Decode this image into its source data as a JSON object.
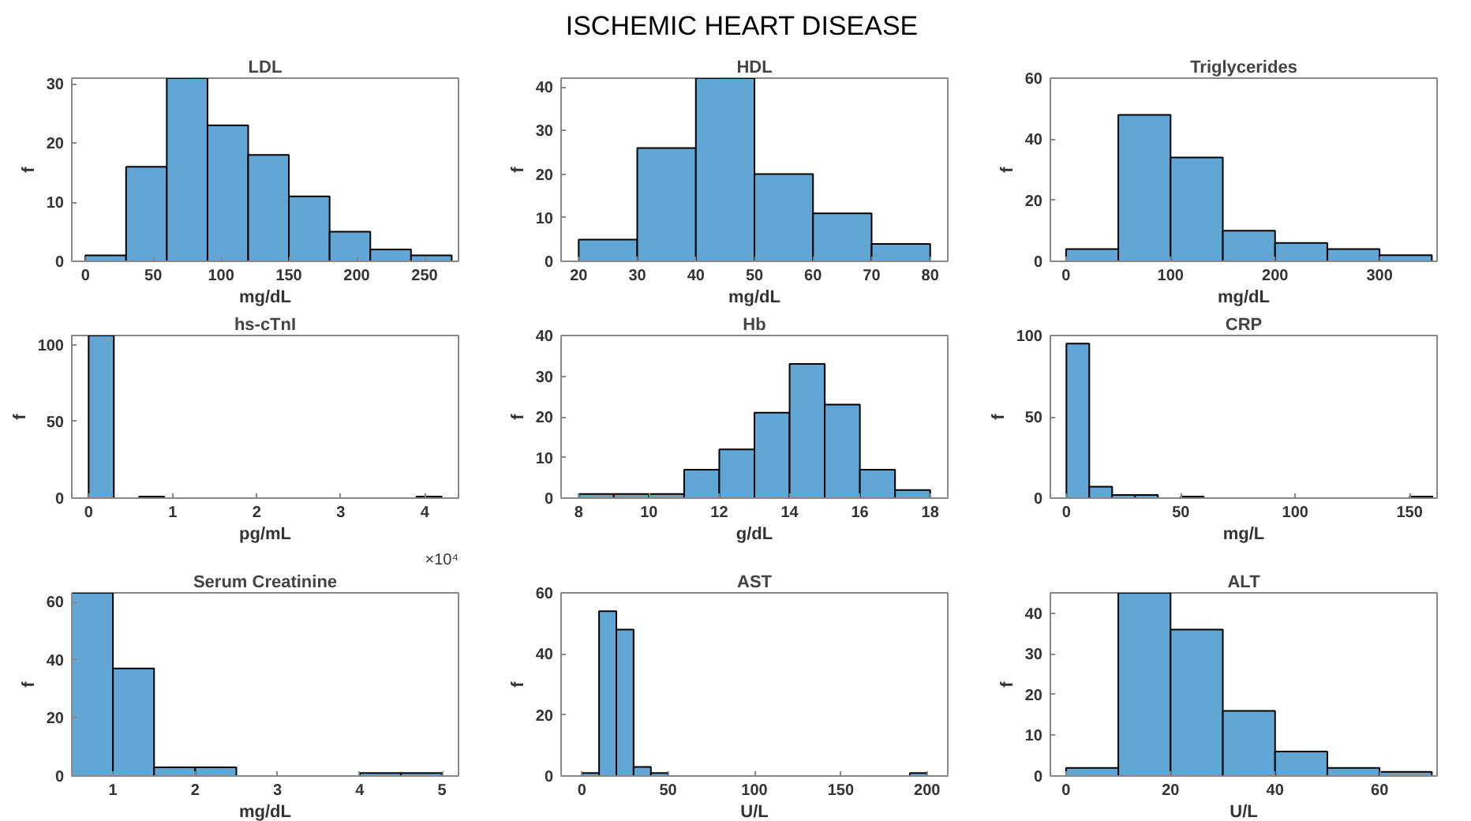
{
  "chart_data": [
    {
      "type": "histogram",
      "title": "LDL",
      "xlabel": "mg/dL",
      "ylabel": "f",
      "annotations": [
        "ISCHEMIC HEART DISEASE"
      ],
      "bins": [
        0,
        30,
        60,
        90,
        120,
        150,
        180,
        210,
        240,
        270
      ],
      "values": [
        1,
        16,
        31,
        23,
        18,
        11,
        5,
        2,
        1
      ],
      "color": "#62a6d6",
      "xlim": [
        -10,
        275
      ],
      "ylim": [
        0,
        31
      ],
      "xticks": [
        0,
        50,
        100,
        150,
        200,
        250
      ],
      "yticks": [
        0,
        10,
        20,
        30
      ],
      "grid": false
    },
    {
      "type": "histogram",
      "title": "HDL",
      "xlabel": "mg/dL",
      "ylabel": "f",
      "bins": [
        20,
        30,
        40,
        50,
        60,
        70,
        80
      ],
      "values": [
        5,
        26,
        42,
        20,
        11,
        4
      ],
      "color": "#62a6d6",
      "xlim": [
        17,
        83
      ],
      "ylim": [
        0,
        42
      ],
      "xticks": [
        20,
        30,
        40,
        50,
        60,
        70,
        80
      ],
      "yticks": [
        0,
        10,
        20,
        30,
        40
      ],
      "grid": false
    },
    {
      "type": "histogram",
      "title": "Triglycerides",
      "xlabel": "mg/dL",
      "ylabel": "f",
      "bins": [
        0,
        50,
        100,
        150,
        200,
        250,
        300,
        350
      ],
      "values": [
        4,
        48,
        34,
        10,
        6,
        4,
        2
      ],
      "color": "#62a6d6",
      "xlim": [
        -15,
        355
      ],
      "ylim": [
        0,
        60
      ],
      "xticks": [
        0,
        100,
        200,
        300
      ],
      "yticks": [
        0,
        20,
        40,
        60
      ],
      "grid": false
    },
    {
      "type": "histogram",
      "title": "hs-cTnI",
      "xlabel": "pg/mL",
      "ylabel": "f",
      "annotations": [
        "×10⁴"
      ],
      "bins": [
        0,
        0.3,
        0.6,
        0.9,
        1.2,
        1.5,
        1.8,
        2.1,
        2.4,
        2.7,
        3,
        3.3,
        3.6,
        3.9,
        4.2
      ],
      "values": [
        106,
        0,
        1,
        0,
        0,
        0,
        0,
        0,
        0,
        0,
        0,
        0,
        0,
        1
      ],
      "color": "#62a6d6",
      "xlim": [
        -0.2,
        4.4
      ],
      "ylim": [
        0,
        106
      ],
      "xticks": [
        0,
        1,
        2,
        3,
        4
      ],
      "yticks": [
        0,
        50,
        100
      ],
      "grid": false
    },
    {
      "type": "histogram",
      "title": "Hb",
      "xlabel": "g/dL",
      "ylabel": "f",
      "bins": [
        8,
        9,
        10,
        11,
        12,
        13,
        14,
        15,
        16,
        17,
        18
      ],
      "values": [
        1,
        1,
        1,
        7,
        12,
        21,
        33,
        23,
        7,
        2
      ],
      "color": "#62a6d6",
      "xlim": [
        7.5,
        18.5
      ],
      "ylim": [
        0,
        40
      ],
      "xticks": [
        8,
        10,
        12,
        14,
        16,
        18
      ],
      "yticks": [
        0,
        10,
        20,
        30,
        40
      ],
      "grid": false
    },
    {
      "type": "histogram",
      "title": "CRP",
      "xlabel": "mg/L",
      "ylabel": "f",
      "bins": [
        0,
        10,
        20,
        30,
        40,
        50,
        60,
        70,
        80,
        90,
        100,
        110,
        120,
        130,
        140,
        150,
        160
      ],
      "values": [
        95,
        7,
        2,
        2,
        0,
        1,
        0,
        0,
        0,
        0,
        0,
        0,
        0,
        0,
        0,
        1
      ],
      "color": "#62a6d6",
      "xlim": [
        -7,
        162
      ],
      "ylim": [
        0,
        100
      ],
      "xticks": [
        0,
        50,
        100,
        150
      ],
      "yticks": [
        0,
        50,
        100
      ],
      "grid": false
    },
    {
      "type": "histogram",
      "title": "Serum Creatinine",
      "xlabel": "mg/dL",
      "ylabel": "f",
      "bins": [
        0.5,
        1,
        1.5,
        2,
        2.5,
        3,
        3.5,
        4,
        4.5,
        5
      ],
      "values": [
        63,
        37,
        3,
        3,
        0,
        0,
        0,
        1,
        1
      ],
      "color": "#62a6d6",
      "xlim": [
        0.5,
        5.2
      ],
      "ylim": [
        0,
        63
      ],
      "xticks": [
        1,
        2,
        3,
        4,
        5
      ],
      "yticks": [
        0,
        20,
        40,
        60
      ],
      "grid": false
    },
    {
      "type": "histogram",
      "title": "AST",
      "xlabel": "U/L",
      "ylabel": "f",
      "bins": [
        0,
        10,
        20,
        30,
        40,
        50,
        60,
        70,
        80,
        90,
        100,
        110,
        120,
        130,
        140,
        150,
        160,
        170,
        180,
        190,
        200
      ],
      "values": [
        1,
        54,
        48,
        3,
        1,
        0,
        0,
        0,
        0,
        0,
        0,
        0,
        0,
        0,
        0,
        0,
        0,
        0,
        0,
        1
      ],
      "color": "#62a6d6",
      "xlim": [
        -12,
        212
      ],
      "ylim": [
        0,
        60
      ],
      "xticks": [
        0,
        50,
        100,
        150,
        200
      ],
      "yticks": [
        0,
        20,
        40,
        60
      ],
      "grid": false
    },
    {
      "type": "histogram",
      "title": "ALT",
      "xlabel": "U/L",
      "ylabel": "f",
      "bins": [
        0,
        10,
        20,
        30,
        40,
        50,
        60,
        70
      ],
      "values": [
        2,
        45,
        36,
        16,
        6,
        2,
        1
      ],
      "color": "#62a6d6",
      "xlim": [
        -3,
        71
      ],
      "ylim": [
        0,
        45
      ],
      "xticks": [
        0,
        20,
        40,
        60
      ],
      "yticks": [
        0,
        10,
        20,
        30,
        40
      ],
      "grid": false
    }
  ]
}
